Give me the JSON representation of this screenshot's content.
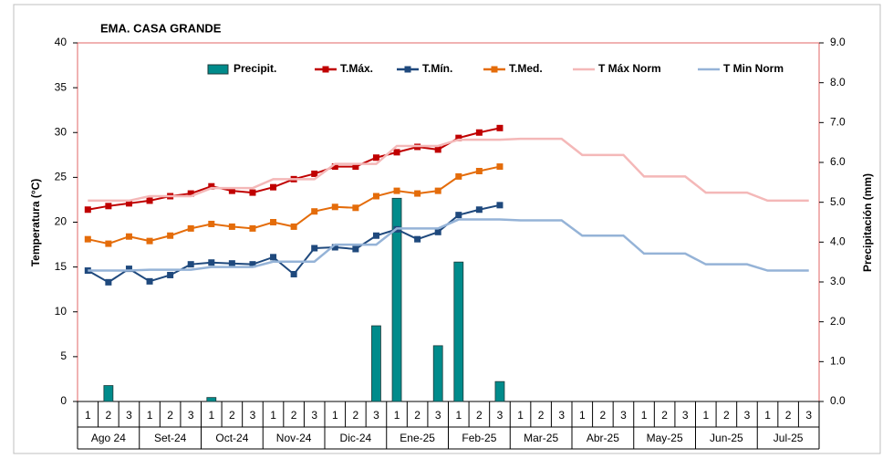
{
  "chart_data": {
    "type": "combo",
    "title": "EMA. CASA GRANDE",
    "y_label": "Temperatura (°C)",
    "y2_label": "Precipitación (mm)",
    "categories": [
      "1",
      "2",
      "3",
      "1",
      "2",
      "3",
      "1",
      "2",
      "3",
      "1",
      "2",
      "3",
      "1",
      "2",
      "3",
      "1",
      "2",
      "3",
      "1",
      "2",
      "3",
      "1",
      "2",
      "3",
      "1",
      "2",
      "3",
      "1",
      "2",
      "3",
      "1",
      "2",
      "3",
      "1",
      "2",
      "3"
    ],
    "groups": [
      "Ago 24",
      "Set-24",
      "Oct-24",
      "Nov-24",
      "Dic-24",
      "Ene-25",
      "Feb-25",
      "Mar-25",
      "Abr-25",
      "May-25",
      "Jun-25",
      "Jul-25"
    ],
    "ylim": [
      0,
      40
    ],
    "yticks": [
      0,
      5,
      10,
      15,
      20,
      25,
      30,
      35,
      40
    ],
    "y2lim": [
      0,
      9
    ],
    "y2ticks": [
      {
        "value": 0,
        "label": "0.0"
      },
      {
        "value": 1,
        "label": "1.0"
      },
      {
        "value": 2,
        "label": "2.0"
      },
      {
        "value": 3,
        "label": "3.0"
      },
      {
        "value": 4,
        "label": "4.0"
      },
      {
        "value": 5,
        "label": "5.0"
      },
      {
        "value": 6,
        "label": "6.0"
      },
      {
        "value": 7,
        "label": "7.0"
      },
      {
        "value": 8,
        "label": "8.0"
      },
      {
        "value": 9,
        "label": "9.0"
      }
    ],
    "series": [
      {
        "name": "Precipit.",
        "type": "bar",
        "axis": "y2",
        "color": "#008b8b",
        "values": [
          0,
          0.4,
          0,
          0,
          0,
          0,
          0.1,
          0,
          0,
          0,
          0,
          0,
          0,
          0,
          1.9,
          5.1,
          0,
          1.4,
          3.5,
          0,
          0.5,
          null,
          null,
          null,
          null,
          null,
          null,
          null,
          null,
          null,
          null,
          null,
          null,
          null,
          null,
          null
        ]
      },
      {
        "name": "T.Máx.",
        "type": "line",
        "marker": true,
        "color": "#c00000",
        "values": [
          21.4,
          21.8,
          22.1,
          22.4,
          22.9,
          23.2,
          24.0,
          23.5,
          23.3,
          23.9,
          24.8,
          25.4,
          26.2,
          26.2,
          27.2,
          27.8,
          28.4,
          28.1,
          29.4,
          30.0,
          30.5,
          null,
          null,
          null,
          null,
          null,
          null,
          null,
          null,
          null,
          null,
          null,
          null,
          null,
          null,
          null
        ]
      },
      {
        "name": "T.Mín.",
        "type": "line",
        "marker": true,
        "color": "#1f497d",
        "values": [
          14.6,
          13.3,
          14.8,
          13.4,
          14.1,
          15.3,
          15.5,
          15.4,
          15.3,
          16.1,
          14.2,
          17.1,
          17.2,
          17.0,
          18.5,
          19.2,
          18.1,
          18.9,
          20.8,
          21.4,
          21.9,
          null,
          null,
          null,
          null,
          null,
          null,
          null,
          null,
          null,
          null,
          null,
          null,
          null,
          null,
          null
        ]
      },
      {
        "name": "T.Med.",
        "type": "line",
        "marker": true,
        "color": "#e46c0a",
        "values": [
          18.1,
          17.6,
          18.4,
          17.9,
          18.5,
          19.3,
          19.8,
          19.5,
          19.3,
          20.0,
          19.5,
          21.2,
          21.7,
          21.6,
          22.9,
          23.5,
          23.2,
          23.5,
          25.1,
          25.7,
          26.2,
          null,
          null,
          null,
          null,
          null,
          null,
          null,
          null,
          null,
          null,
          null,
          null,
          null,
          null,
          null
        ]
      },
      {
        "name": "T Máx Norm",
        "type": "line",
        "marker": false,
        "color": "#f4b8b8",
        "values": [
          22.4,
          22.4,
          22.4,
          22.9,
          22.9,
          22.9,
          23.8,
          23.8,
          23.8,
          24.8,
          24.8,
          24.8,
          26.5,
          26.5,
          26.5,
          28.5,
          28.5,
          28.5,
          29.2,
          29.2,
          29.2,
          29.3,
          29.3,
          29.3,
          27.5,
          27.5,
          27.5,
          25.1,
          25.1,
          25.1,
          23.3,
          23.3,
          23.3,
          22.4,
          22.4,
          22.4
        ]
      },
      {
        "name": "T Min Norm",
        "type": "line",
        "marker": false,
        "color": "#95b3d7",
        "values": [
          14.6,
          14.6,
          14.6,
          14.7,
          14.7,
          14.7,
          15.0,
          15.0,
          15.0,
          15.6,
          15.6,
          15.6,
          17.5,
          17.5,
          17.5,
          19.3,
          19.3,
          19.3,
          20.3,
          20.3,
          20.3,
          20.2,
          20.2,
          20.2,
          18.5,
          18.5,
          18.5,
          16.5,
          16.5,
          16.5,
          15.3,
          15.3,
          15.3,
          14.6,
          14.6,
          14.6
        ]
      }
    ]
  }
}
